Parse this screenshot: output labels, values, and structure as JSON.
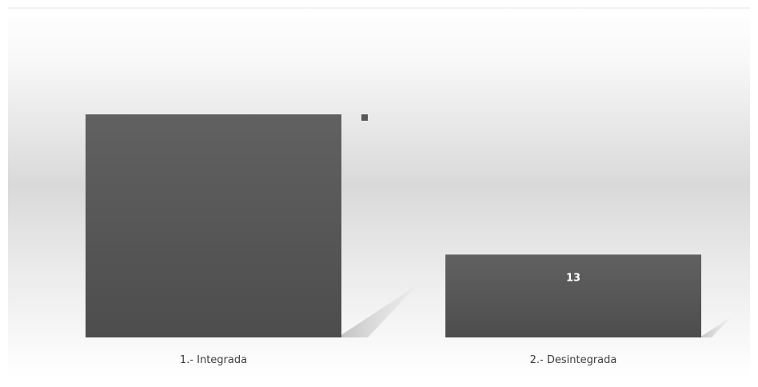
{
  "chart_data": {
    "type": "bar",
    "title": "",
    "xlabel": "",
    "ylabel": "",
    "categories": [
      "1.- Integrada",
      "2.- Desintegrada"
    ],
    "series": [
      {
        "values": [
          35,
          13
        ],
        "data_labels": [
          "",
          "13"
        ]
      }
    ],
    "ylim": [
      0,
      35
    ],
    "grid": false,
    "legend": "right",
    "colors": {
      "bar": "#5a5a5a",
      "bar_top": "#616161",
      "bar_bottom": "#4d4d4d",
      "shadow": "#c4c4c4",
      "legend_marker": "#595959",
      "label_text": "#404040",
      "data_label_text": "#ffffff",
      "plot_bg_top": "#ffffff",
      "plot_bg_mid": "#d9d9d9"
    }
  }
}
